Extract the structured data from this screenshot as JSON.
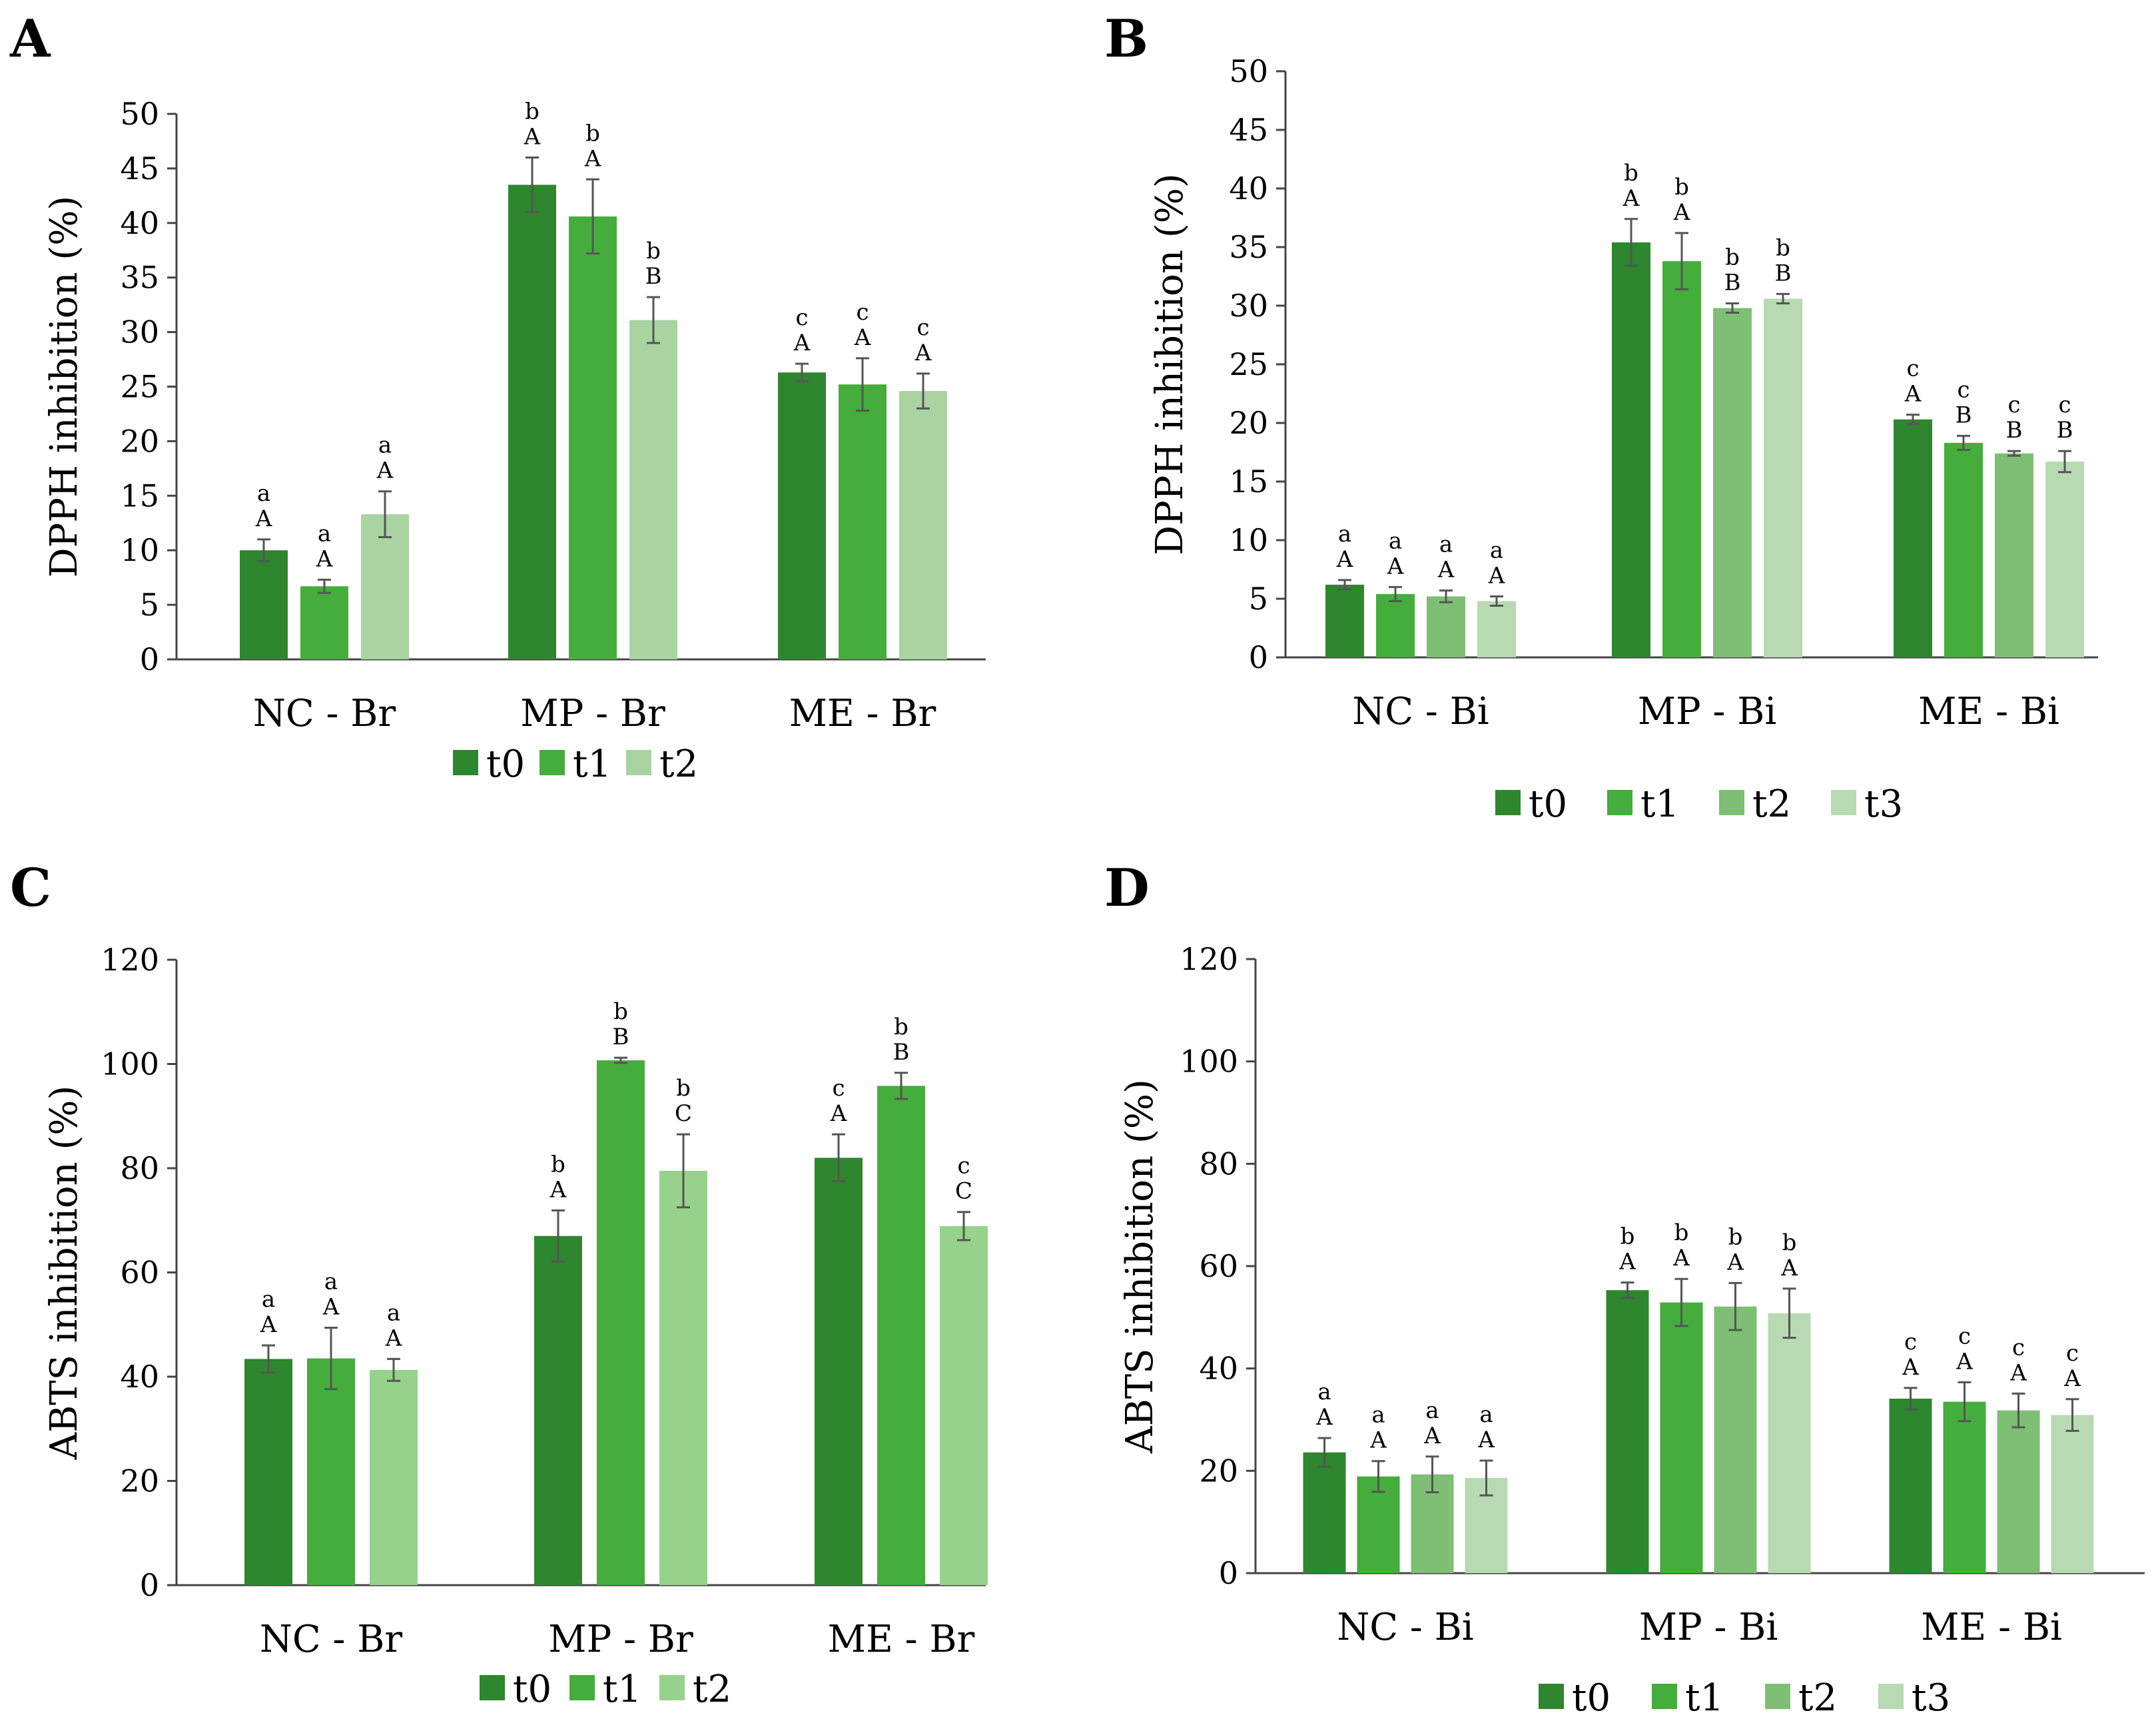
{
  "chart_data": [
    {
      "panel": "A",
      "type": "bar",
      "ylabel": "DPPH inhibition (%)",
      "ylim": [
        0,
        50
      ],
      "yticks": [
        0,
        5,
        10,
        15,
        20,
        25,
        30,
        35,
        40,
        45,
        50
      ],
      "categories": [
        "NC - Br",
        "MP - Br",
        "ME - Br"
      ],
      "legend": "bottom",
      "series": [
        {
          "name": "t0",
          "color": "#2e862e",
          "values": [
            10.0,
            43.5,
            26.3
          ],
          "errors": [
            1.0,
            2.5,
            0.8
          ],
          "lower": [
            "a",
            "b",
            "c"
          ],
          "upper": [
            "A",
            "A",
            "A"
          ]
        },
        {
          "name": "t1",
          "color": "#44ad3c",
          "values": [
            6.7,
            40.6,
            25.2
          ],
          "errors": [
            0.6,
            3.4,
            2.4
          ],
          "lower": [
            "a",
            "b",
            "c"
          ],
          "upper": [
            "A",
            "A",
            "A"
          ]
        },
        {
          "name": "t2",
          "color": "#a9d3a1",
          "values": [
            13.3,
            31.1,
            24.6
          ],
          "errors": [
            2.1,
            2.1,
            1.6
          ],
          "lower": [
            "a",
            "b",
            "c"
          ],
          "upper": [
            "A",
            "B",
            "A"
          ]
        }
      ]
    },
    {
      "panel": "B",
      "type": "bar",
      "ylabel": "DPPH inhibition (%)",
      "ylim": [
        0,
        50
      ],
      "yticks": [
        0,
        5,
        10,
        15,
        20,
        25,
        30,
        35,
        40,
        45,
        50
      ],
      "categories": [
        "NC - Bi",
        "MP - Bi",
        "ME - Bi"
      ],
      "legend": "bottom",
      "series": [
        {
          "name": "t0",
          "color": "#2e862e",
          "values": [
            6.2,
            35.4,
            20.3
          ],
          "errors": [
            0.4,
            2.0,
            0.4
          ],
          "lower": [
            "a",
            "b",
            "c"
          ],
          "upper": [
            "A",
            "A",
            "A"
          ]
        },
        {
          "name": "t1",
          "color": "#44ad3c",
          "values": [
            5.4,
            33.8,
            18.3
          ],
          "errors": [
            0.6,
            2.4,
            0.6
          ],
          "lower": [
            "a",
            "b",
            "c"
          ],
          "upper": [
            "A",
            "A",
            "B"
          ]
        },
        {
          "name": "t2",
          "color": "#7fbe75",
          "values": [
            5.2,
            29.8,
            17.4
          ],
          "errors": [
            0.5,
            0.4,
            0.2
          ],
          "lower": [
            "a",
            "b",
            "c"
          ],
          "upper": [
            "A",
            "B",
            "B"
          ]
        },
        {
          "name": "t3",
          "color": "#b8dab2",
          "values": [
            4.8,
            30.6,
            16.7
          ],
          "errors": [
            0.4,
            0.4,
            0.9
          ],
          "lower": [
            "a",
            "b",
            "c"
          ],
          "upper": [
            "A",
            "B",
            "B"
          ]
        }
      ]
    },
    {
      "panel": "C",
      "type": "bar",
      "ylabel": "ABTS inhibition (%)",
      "ylim": [
        0,
        120
      ],
      "yticks": [
        0,
        20,
        40,
        60,
        80,
        100,
        120
      ],
      "categories": [
        "NC - Br",
        "MP - Br",
        "ME - Br"
      ],
      "legend": "bottom",
      "series": [
        {
          "name": "t0",
          "color": "#2e862e",
          "values": [
            43.4,
            67.0,
            82.0
          ],
          "errors": [
            2.6,
            4.9,
            4.5
          ],
          "lower": [
            "a",
            "b",
            "c"
          ],
          "upper": [
            "A",
            "A",
            "A"
          ]
        },
        {
          "name": "t1",
          "color": "#44ad3c",
          "values": [
            43.5,
            100.7,
            95.8
          ],
          "errors": [
            5.9,
            0.5,
            2.5
          ],
          "lower": [
            "a",
            "b",
            "b"
          ],
          "upper": [
            "A",
            "B",
            "B"
          ]
        },
        {
          "name": "t2",
          "color": "#96d28b",
          "values": [
            41.3,
            79.5,
            68.9
          ],
          "errors": [
            2.1,
            7.0,
            2.7
          ],
          "lower": [
            "a",
            "b",
            "c"
          ],
          "upper": [
            "A",
            "C",
            "C"
          ]
        }
      ]
    },
    {
      "panel": "D",
      "type": "bar",
      "ylabel": "ABTS inhibition (%)",
      "ylim": [
        0,
        120
      ],
      "yticks": [
        0,
        20,
        40,
        60,
        80,
        100,
        120
      ],
      "categories": [
        "NC - Bi",
        "MP - Bi",
        "ME - Bi"
      ],
      "legend": "bottom",
      "series": [
        {
          "name": "t0",
          "color": "#2e862e",
          "values": [
            23.6,
            55.3,
            34.1
          ],
          "errors": [
            2.8,
            1.5,
            2.1
          ],
          "lower": [
            "a",
            "b",
            "c"
          ],
          "upper": [
            "A",
            "A",
            "A"
          ]
        },
        {
          "name": "t1",
          "color": "#44ad3c",
          "values": [
            18.9,
            52.9,
            33.5
          ],
          "errors": [
            3.0,
            4.6,
            3.8
          ],
          "lower": [
            "a",
            "b",
            "c"
          ],
          "upper": [
            "A",
            "A",
            "A"
          ]
        },
        {
          "name": "t2",
          "color": "#7fbe75",
          "values": [
            19.3,
            52.1,
            31.8
          ],
          "errors": [
            3.5,
            4.6,
            3.3
          ],
          "lower": [
            "a",
            "b",
            "c"
          ],
          "upper": [
            "A",
            "A",
            "A"
          ]
        },
        {
          "name": "t3",
          "color": "#b8dab2",
          "values": [
            18.6,
            50.8,
            30.9
          ],
          "errors": [
            3.4,
            4.8,
            3.1
          ],
          "lower": [
            "a",
            "b",
            "c"
          ],
          "upper": [
            "A",
            "A",
            "A"
          ]
        }
      ]
    }
  ]
}
